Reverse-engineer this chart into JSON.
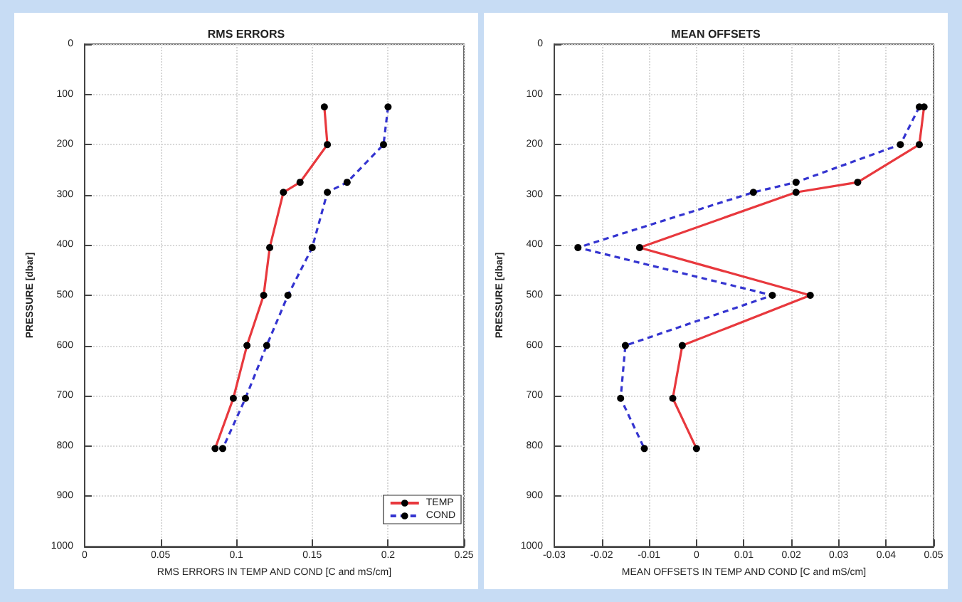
{
  "chart_data": [
    {
      "type": "line",
      "title": "RMS ERRORS",
      "xlabel": "RMS ERRORS IN TEMP AND COND [C and mS/cm]",
      "ylabel": "PRESSURE [dbar]",
      "xlim": [
        0,
        0.25
      ],
      "xticks": [
        0,
        0.05,
        0.1,
        0.15,
        0.2,
        0.25
      ],
      "ylim": [
        1000,
        0
      ],
      "yticks": [
        0,
        100,
        200,
        300,
        400,
        500,
        600,
        700,
        800,
        900,
        1000
      ],
      "grid": true,
      "legend": "bottom right",
      "marker": "circle",
      "series": [
        {
          "name": "TEMP",
          "color": "#e8383d",
          "line_style": "solid",
          "x": [
            0.158,
            0.16,
            0.142,
            0.131,
            0.122,
            0.118,
            0.107,
            0.098,
            0.086
          ],
          "values": [
            125,
            200,
            275,
            295,
            405,
            500,
            600,
            705,
            805
          ]
        },
        {
          "name": "COND",
          "color": "#3434d0",
          "line_style": "dashed",
          "x": [
            0.2,
            0.197,
            0.173,
            0.16,
            0.15,
            0.134,
            0.12,
            0.106,
            0.091
          ],
          "values": [
            125,
            200,
            275,
            295,
            405,
            500,
            600,
            705,
            805
          ]
        }
      ]
    },
    {
      "type": "line",
      "title": "MEAN OFFSETS",
      "xlabel": "MEAN OFFSETS IN TEMP AND COND [C and mS/cm]",
      "ylabel": "PRESSURE [dbar]",
      "xlim": [
        -0.03,
        0.05
      ],
      "xticks": [
        -0.03,
        -0.02,
        -0.01,
        0,
        0.01,
        0.02,
        0.03,
        0.04,
        0.05
      ],
      "ylim": [
        1000,
        0
      ],
      "yticks": [
        0,
        100,
        200,
        300,
        400,
        500,
        600,
        700,
        800,
        900,
        1000
      ],
      "grid": true,
      "marker": "circle",
      "series": [
        {
          "color": "#e8383d",
          "line_style": "solid",
          "x": [
            0.048,
            0.047,
            0.034,
            0.021,
            -0.012,
            0.024,
            -0.003,
            -0.005,
            0
          ],
          "values": [
            125,
            200,
            275,
            295,
            405,
            500,
            600,
            705,
            805
          ]
        },
        {
          "color": "#3434d0",
          "line_style": "dashed",
          "x": [
            0.047,
            0.043,
            0.021,
            0.012,
            -0.025,
            0.016,
            -0.015,
            -0.016,
            -0.011
          ],
          "values": [
            125,
            200,
            275,
            295,
            405,
            500,
            600,
            705,
            805
          ]
        }
      ]
    }
  ]
}
